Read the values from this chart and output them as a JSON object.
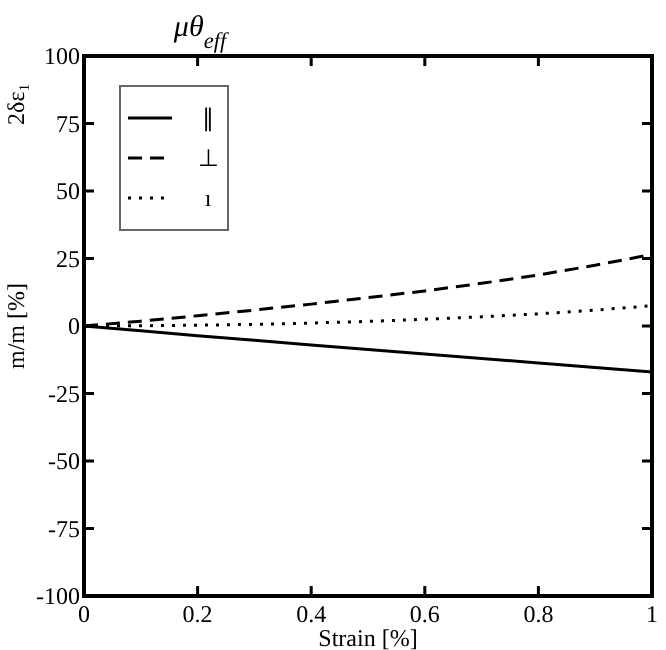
{
  "chart_data": {
    "type": "line",
    "title": "μθ$_{eff}$",
    "xlabel": "Strain [%]",
    "ylabel": "m/m [%]",
    "annotations": [
      "2δε₁"
    ],
    "xlim": [
      0,
      1
    ],
    "ylim": [
      -100,
      100
    ],
    "xticks": [
      0,
      0.2,
      0.4,
      0.6,
      0.8,
      1
    ],
    "yticks": [
      -100,
      -75,
      -50,
      -25,
      0,
      25,
      50,
      75,
      100
    ],
    "legend": "top left",
    "grid": false,
    "marker": "none",
    "x": [
      0,
      0.1,
      0.2,
      0.3,
      0.4,
      0.5,
      0.6,
      0.7,
      0.8,
      0.9,
      1
    ],
    "series": [
      {
        "name": "∥",
        "color": "#000000",
        "line_style": "solid",
        "values": [
          0,
          -1.8,
          -3.6,
          -5.3,
          -7,
          -8.7,
          -10.4,
          -12,
          -13.7,
          -15.4,
          -17
        ]
      },
      {
        "name": "⊥",
        "color": "#000000",
        "line_style": "dashed",
        "values": [
          0,
          1.8,
          3.8,
          5.9,
          8.1,
          10.5,
          13,
          15.8,
          18.9,
          22.5,
          26.5
        ]
      },
      {
        "name": "ı",
        "color": "#000000",
        "line_style": "dotted",
        "values": [
          0,
          0.1,
          0.3,
          0.6,
          1.1,
          1.7,
          2.5,
          3.4,
          4.5,
          5.9,
          7.5
        ]
      }
    ]
  }
}
